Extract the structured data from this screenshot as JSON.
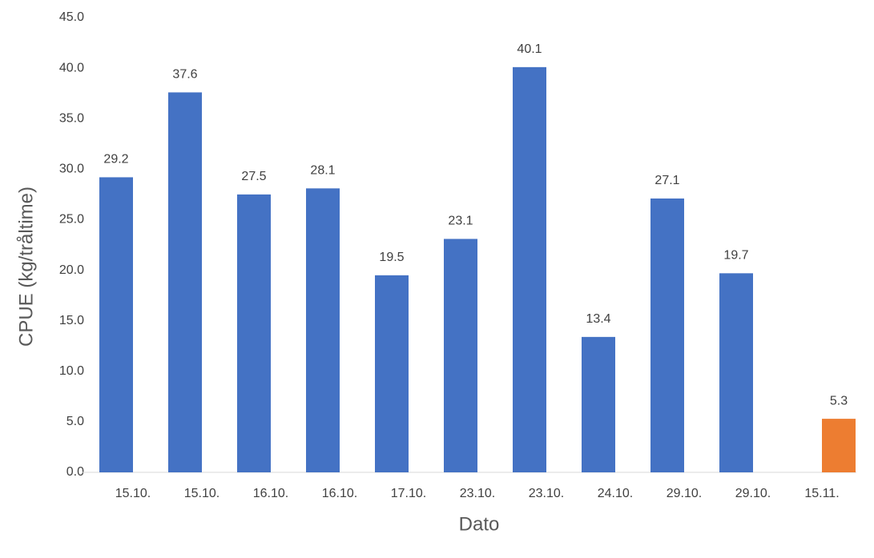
{
  "chart_data": {
    "type": "bar",
    "x_label": "Dato",
    "y_label": "CPUE (kg/tråltime)",
    "categories": [
      "15.10.",
      "15.10.",
      "16.10.",
      "16.10.",
      "17.10.",
      "23.10.",
      "23.10.",
      "24.10.",
      "29.10.",
      "29.10.",
      "15.11."
    ],
    "series": [
      {
        "color": "#4472c4",
        "values": [
          29.2,
          37.6,
          27.5,
          28.1,
          19.5,
          23.1,
          40.1,
          13.4,
          27.1,
          19.7,
          null
        ]
      },
      {
        "color": "#ed7d31",
        "values": [
          null,
          null,
          null,
          null,
          null,
          null,
          null,
          null,
          null,
          null,
          5.3
        ]
      }
    ],
    "ylim": [
      0,
      45
    ],
    "yticks": [
      {
        "value": 0,
        "label": "0.0"
      },
      {
        "value": 5,
        "label": "5.0"
      },
      {
        "value": 10,
        "label": "10.0"
      },
      {
        "value": 15,
        "label": "15.0"
      },
      {
        "value": 20,
        "label": "20.0"
      },
      {
        "value": 25,
        "label": "25.0"
      },
      {
        "value": 30,
        "label": "30.0"
      },
      {
        "value": 35,
        "label": "35.0"
      },
      {
        "value": 40,
        "label": "40.0"
      },
      {
        "value": 45,
        "label": "45.0"
      }
    ],
    "grid": false
  }
}
